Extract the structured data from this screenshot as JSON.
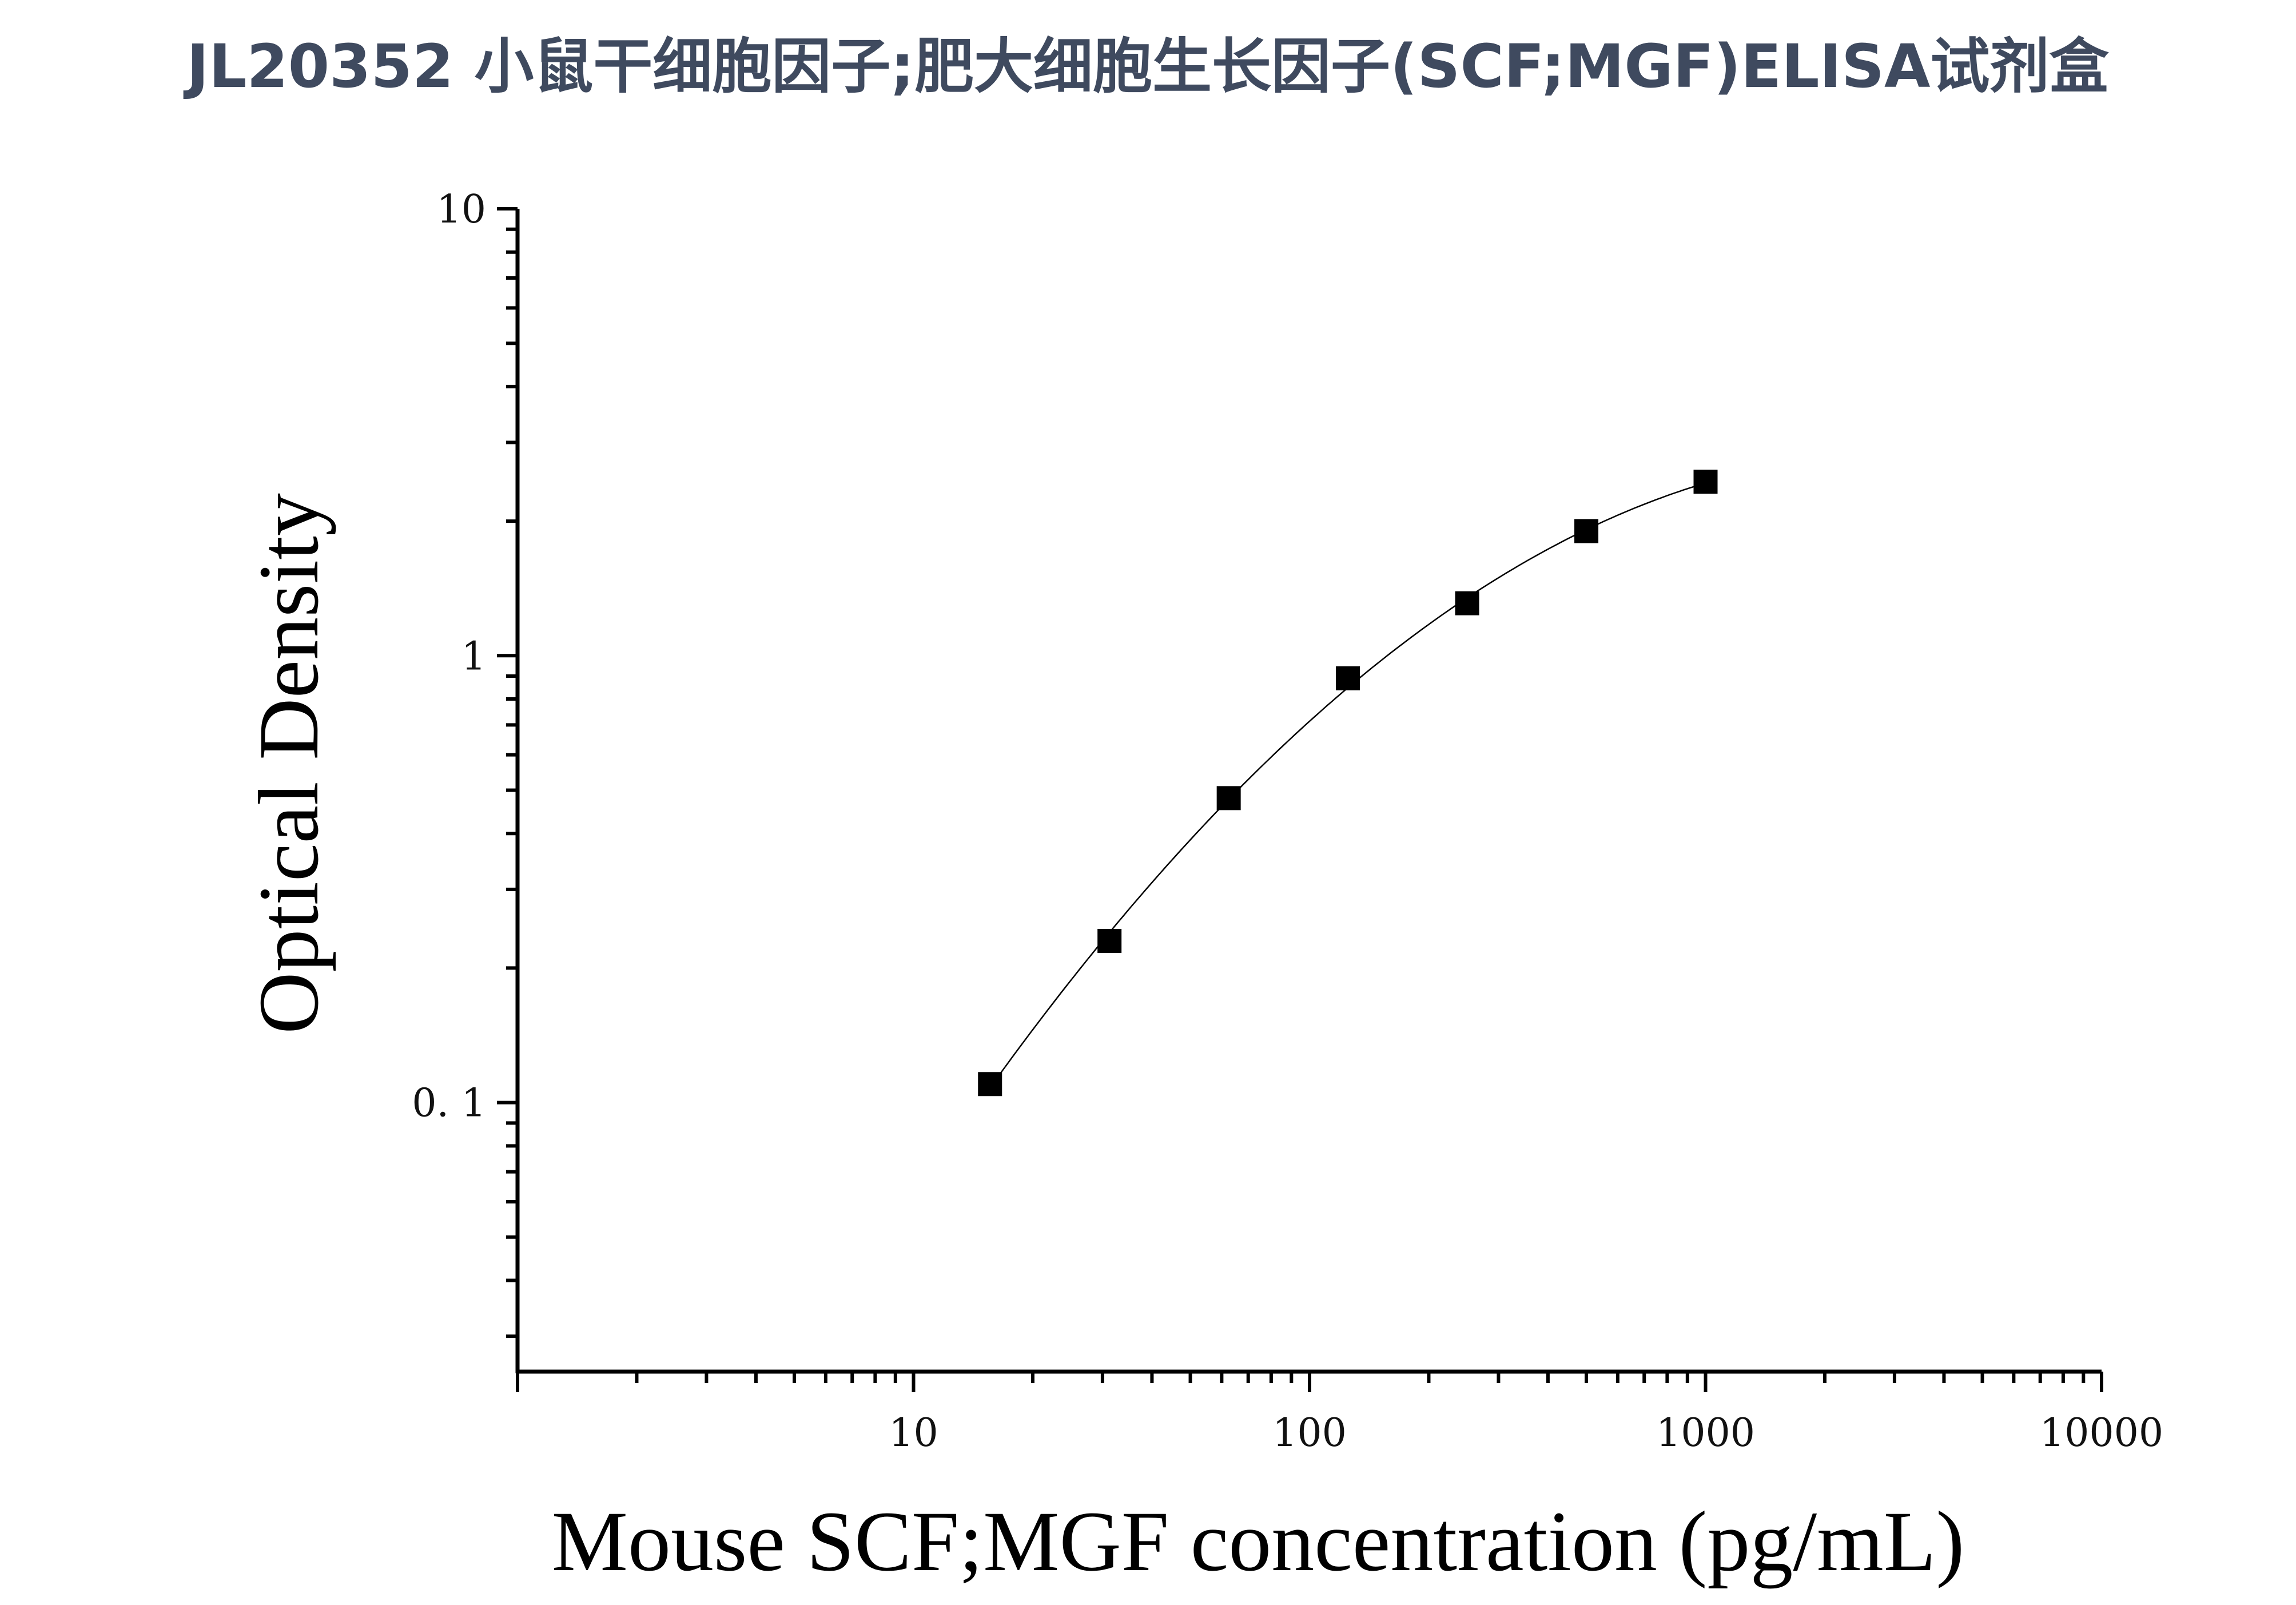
{
  "chart_data": {
    "type": "scatter",
    "title": "JL20352 小鼠干细胞因子;肥大细胞生长因子(SCF;MGF)ELISA试剂盒",
    "xlabel": "Mouse SCF;MGF concentration (pg/mL)",
    "ylabel": "Optical Density",
    "x_scale": "log",
    "y_scale": "log",
    "xlim": [
      1,
      10000
    ],
    "ylim": [
      0.025,
      10
    ],
    "x_ticks": [
      {
        "value": 10,
        "label": "10"
      },
      {
        "value": 100,
        "label": "100"
      },
      {
        "value": 1000,
        "label": "1000"
      },
      {
        "value": 10000,
        "label": "10000"
      }
    ],
    "y_ticks": [
      {
        "value": 0.1,
        "label": "0. 1"
      },
      {
        "value": 1,
        "label": "1"
      },
      {
        "value": 10,
        "label": "10"
      }
    ],
    "grid": false,
    "series": [
      {
        "marker": "square",
        "color": "#000000",
        "x": [
          15.6,
          31.25,
          62.5,
          125,
          250,
          500,
          1000
        ],
        "y": [
          0.11,
          0.23,
          0.48,
          0.89,
          1.31,
          1.9,
          2.45
        ]
      }
    ],
    "fit_curve": {
      "style": "thin-solid",
      "color": "#000000",
      "x_range": [
        16,
        1000
      ]
    }
  }
}
